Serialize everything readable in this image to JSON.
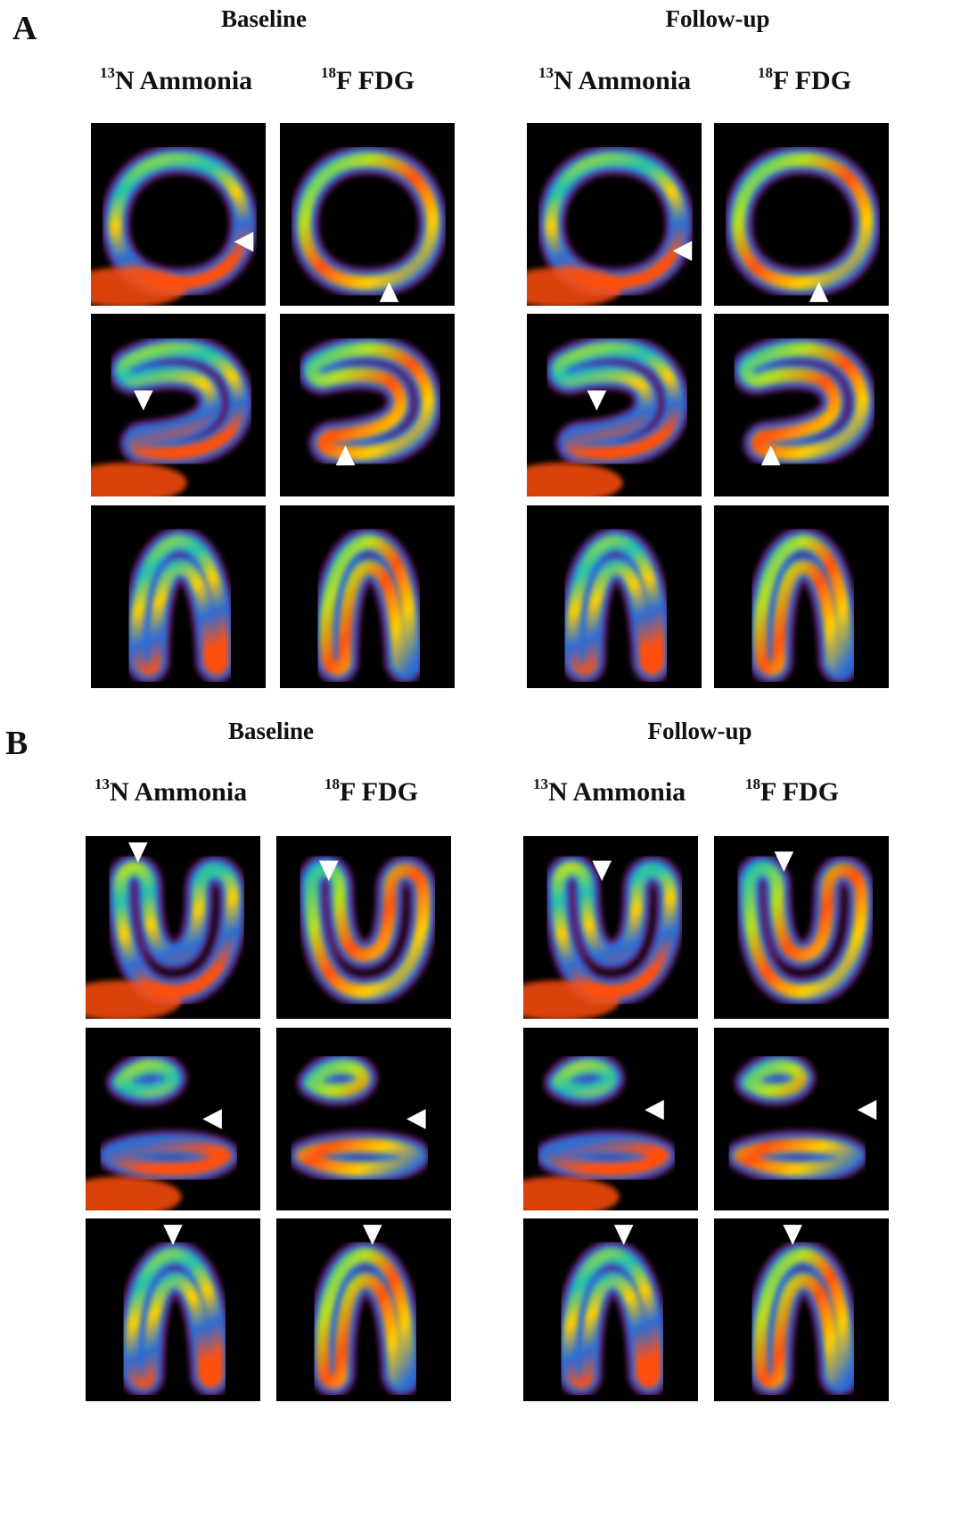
{
  "panels": [
    {
      "letter": "A",
      "groups": [
        {
          "title": "Baseline",
          "columns": [
            {
              "isotope": "13",
              "label": "N Ammonia"
            },
            {
              "isotope": "18",
              "label": "F FDG"
            }
          ]
        },
        {
          "title": "Follow-up",
          "columns": [
            {
              "isotope": "13",
              "label": "N Ammonia"
            },
            {
              "isotope": "18",
              "label": "F FDG"
            }
          ]
        }
      ]
    },
    {
      "letter": "B",
      "groups": [
        {
          "title": "Baseline",
          "columns": [
            {
              "isotope": "13",
              "label": "N Ammonia"
            },
            {
              "isotope": "18",
              "label": "F FDG"
            }
          ]
        },
        {
          "title": "Follow-up",
          "columns": [
            {
              "isotope": "13",
              "label": "N Ammonia"
            },
            {
              "isotope": "18",
              "label": "F FDG"
            }
          ]
        }
      ]
    }
  ],
  "images": {
    "description_views": [
      "short-axis",
      "horizontal-long-axis",
      "vertical-long-axis"
    ],
    "colormap": [
      "#2a0030",
      "#7a2a8c",
      "#2a6cd6",
      "#20c0b0",
      "#b8e020",
      "#ffd000",
      "#ff5010"
    ],
    "marker_color": "#ffffff"
  }
}
